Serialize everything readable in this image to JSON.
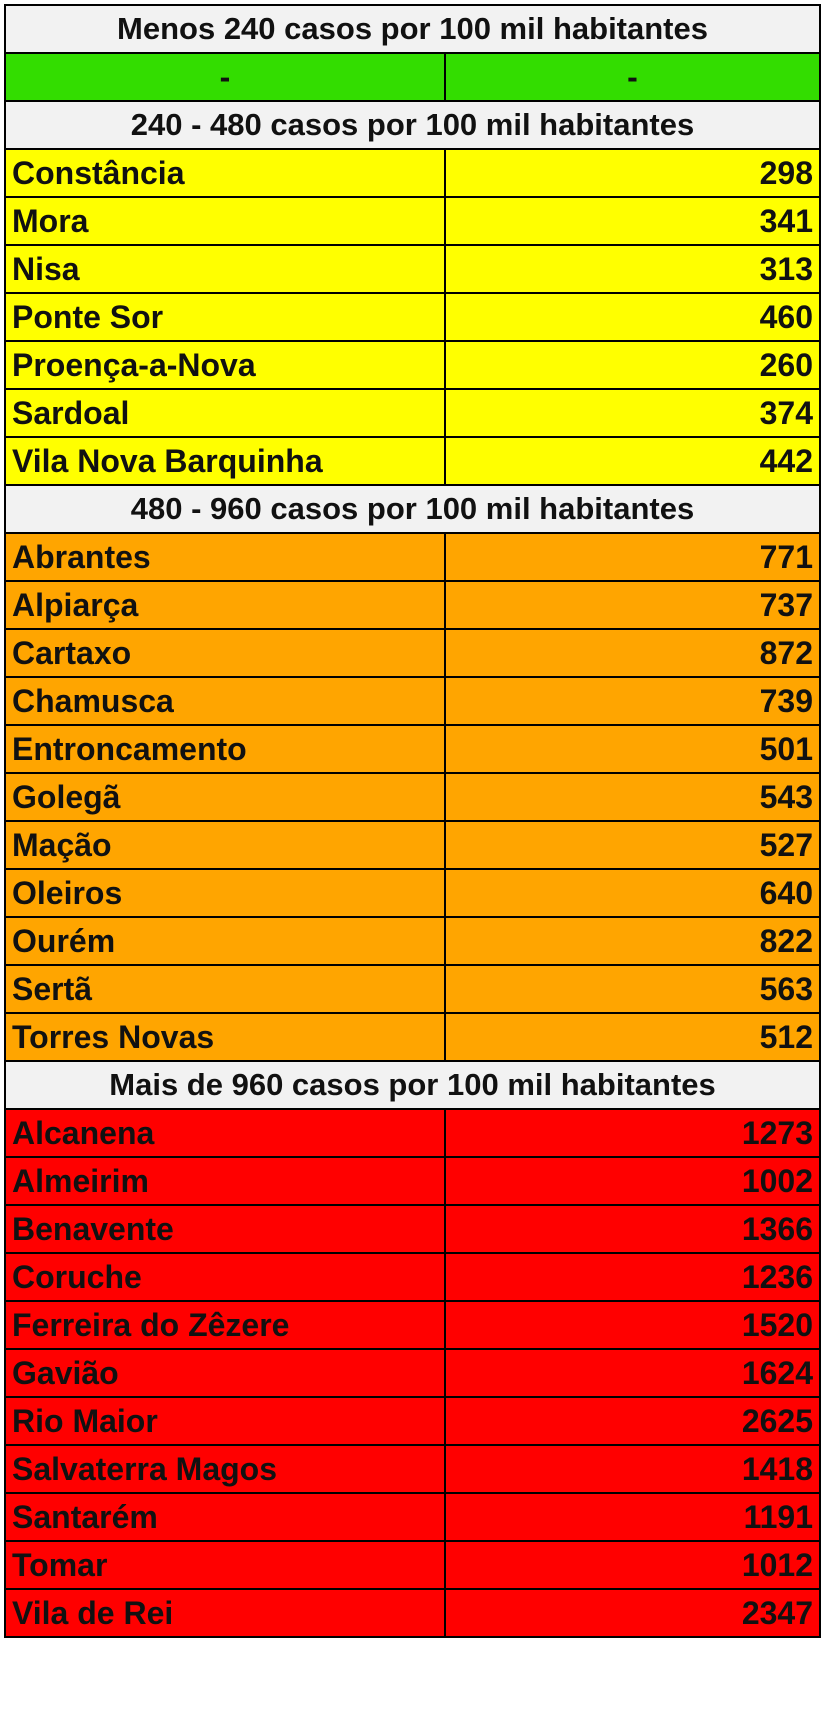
{
  "colors": {
    "header": "#f2f2f2",
    "green": "#33dd00",
    "yellow": "#ffff00",
    "orange": "#ffa500",
    "red": "#ff0000"
  },
  "groups": [
    {
      "header": "Menos 240 casos por 100 mil habitantes",
      "color": "green",
      "rows": [
        {
          "name": "-",
          "value": "-"
        }
      ]
    },
    {
      "header": "240 - 480 casos  por 100 mil habitantes",
      "color": "yellow",
      "rows": [
        {
          "name": "Constância",
          "value": "298"
        },
        {
          "name": "Mora",
          "value": "341"
        },
        {
          "name": "Nisa",
          "value": "313"
        },
        {
          "name": "Ponte Sor",
          "value": "460"
        },
        {
          "name": "Proença-a-Nova",
          "value": "260"
        },
        {
          "name": "Sardoal",
          "value": "374"
        },
        {
          "name": "Vila Nova Barquinha",
          "value": "442"
        }
      ]
    },
    {
      "header": "480 - 960 casos por 100 mil habitantes",
      "color": "orange",
      "rows": [
        {
          "name": "Abrantes",
          "value": "771"
        },
        {
          "name": "Alpiarça",
          "value": "737"
        },
        {
          "name": "Cartaxo",
          "value": "872"
        },
        {
          "name": "Chamusca",
          "value": "739"
        },
        {
          "name": "Entroncamento",
          "value": "501"
        },
        {
          "name": "Golegã",
          "value": "543"
        },
        {
          "name": "Mação",
          "value": "527"
        },
        {
          "name": "Oleiros",
          "value": "640"
        },
        {
          "name": "Ourém",
          "value": "822"
        },
        {
          "name": "Sertã",
          "value": "563"
        },
        {
          "name": "Torres Novas",
          "value": "512"
        }
      ]
    },
    {
      "header": "Mais de 960 casos  por 100 mil habitantes",
      "color": "red",
      "rows": [
        {
          "name": "Alcanena",
          "value": "1273"
        },
        {
          "name": "Almeirim",
          "value": "1002"
        },
        {
          "name": "Benavente",
          "value": "1366"
        },
        {
          "name": "Coruche",
          "value": "1236"
        },
        {
          "name": "Ferreira do Zêzere",
          "value": "1520"
        },
        {
          "name": "Gavião",
          "value": "1624"
        },
        {
          "name": "Rio Maior",
          "value": "2625"
        },
        {
          "name": "Salvaterra Magos",
          "value": "1418"
        },
        {
          "name": "Santarém",
          "value": "1191"
        },
        {
          "name": "Tomar",
          "value": "1012"
        },
        {
          "name": "Vila de Rei",
          "value": "2347"
        }
      ]
    }
  ]
}
